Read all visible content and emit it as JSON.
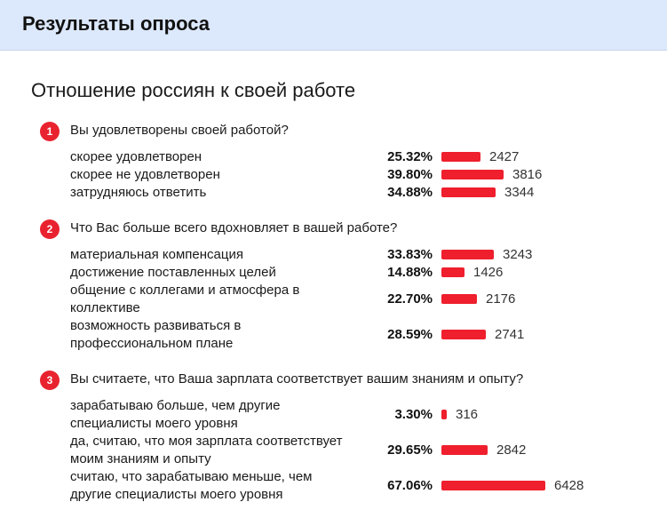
{
  "header": {
    "title": "Результаты опроса"
  },
  "survey": {
    "title": "Отношение россиян к своей работе"
  },
  "questions": [
    {
      "number": "1",
      "text": "Вы удовлетворены своей работой?",
      "answers": [
        {
          "lines": [
            "скорее удовлетворен"
          ],
          "percent": "25.32%",
          "count": "2427",
          "fraction": 0.2532
        },
        {
          "lines": [
            "скорее не удовлетворен"
          ],
          "percent": "39.80%",
          "count": "3816",
          "fraction": 0.398
        },
        {
          "lines": [
            "затрудняюсь ответить"
          ],
          "percent": "34.88%",
          "count": "3344",
          "fraction": 0.3488
        }
      ]
    },
    {
      "number": "2",
      "text": "Что Вас больше всего вдохновляет в вашей работе?",
      "answers": [
        {
          "lines": [
            "материальная компенсация"
          ],
          "percent": "33.83%",
          "count": "3243",
          "fraction": 0.3383
        },
        {
          "lines": [
            "достижение поставленных целей"
          ],
          "percent": "14.88%",
          "count": "1426",
          "fraction": 0.1488
        },
        {
          "lines": [
            "общение с коллегами и атмосфера в",
            "коллективе"
          ],
          "percent": "22.70%",
          "count": "2176",
          "fraction": 0.227
        },
        {
          "lines": [
            "возможность развиваться в",
            "профессиональном плане"
          ],
          "percent": "28.59%",
          "count": "2741",
          "fraction": 0.2859
        }
      ]
    },
    {
      "number": "3",
      "text": "Вы считаете, что Ваша зарплата соответствует вашим знаниям и опыту?",
      "answers": [
        {
          "lines": [
            "зарабатываю больше, чем другие",
            "специалисты моего уровня"
          ],
          "percent": "3.30%",
          "count": "316",
          "fraction": 0.033
        },
        {
          "lines": [
            "да, считаю, что моя зарплата соответствует",
            "моим знаниям и опыту"
          ],
          "percent": "29.65%",
          "count": "2842",
          "fraction": 0.2965
        },
        {
          "lines": [
            "считаю, что зарабатываю меньше, чем",
            "другие специалисты моего уровня"
          ],
          "percent": "67.06%",
          "count": "6428",
          "fraction": 0.6706
        }
      ]
    }
  ],
  "colors": {
    "bar": "#ef1f2d",
    "badge": "#e8232f",
    "header_bg": "#dce8fb"
  }
}
